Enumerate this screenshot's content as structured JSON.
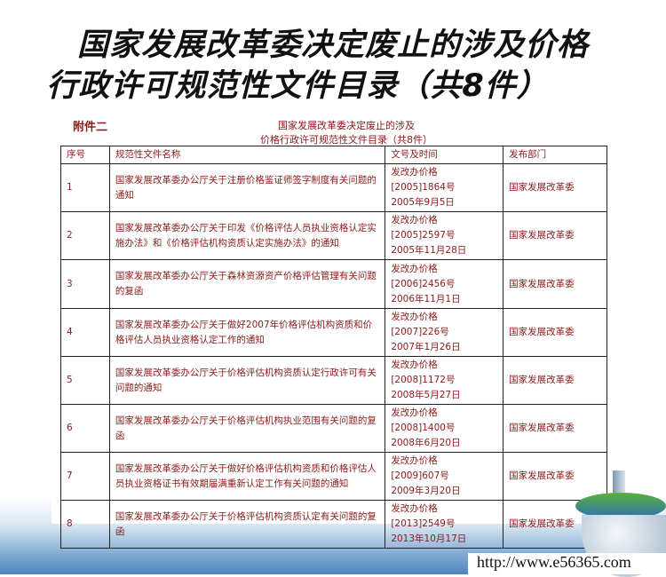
{
  "slide": {
    "title_line1": "国家发展改革委决定废止的涉及价格",
    "title_line2": "行政许可规范性文件目录（共8件）"
  },
  "document": {
    "annex_label": "附件二",
    "title_line1": "国家发展改革委决定废止的涉及",
    "title_line2": "价格行政许可规范性文件目录（共8件）",
    "table": {
      "headers": [
        "序号",
        "规范性文件名称",
        "文号及时间",
        "发布部门"
      ],
      "rows": [
        {
          "no": "1",
          "name": "国家发展改革委办公厅关于注册价格鉴证师签字制度有关问题的通知",
          "doc": "发改办价格",
          "num": "[2005]1864号",
          "date": "2005年9月5日",
          "dept": "国家发展改革委"
        },
        {
          "no": "2",
          "name": "国家发展改革委办公厅关于印发《价格评估人员执业资格认定实施办法》和《价格评估机构资质认定实施办法》的通知",
          "doc": "发改办价格",
          "num": "[2005]2597号",
          "date": "2005年11月28日",
          "dept": "国家发展改革委"
        },
        {
          "no": "3",
          "name": "国家发展改革委办公厅关于森林资源资产价格评估管理有关问题的复函",
          "doc": "发改办价格",
          "num": "[2006]2456号",
          "date": "2006年11月1日",
          "dept": "国家发展改革委"
        },
        {
          "no": "4",
          "name": "国家发展改革委办公厅关于做好2007年价格评估机构资质和价格评估人员执业资格认定工作的通知",
          "doc": "发改办价格",
          "num": "[2007]226号",
          "date": "2007年1月26日",
          "dept": "国家发展改革委"
        },
        {
          "no": "5",
          "name": "国家发展改革委办公厅关于价格评估机构资质认定行政许可有关问题的通知",
          "doc": "发改办价格",
          "num": "[2008]1172号",
          "date": "2008年5月27日",
          "dept": "国家发展改革委"
        },
        {
          "no": "6",
          "name": "国家发展改革委办公厅关于价格评估机构执业范围有关问题的复函",
          "doc": "发改办价格",
          "num": "[2008]1400号",
          "date": "2008年6月20日",
          "dept": "国家发展改革委"
        },
        {
          "no": "7",
          "name": "国家发展改革委办公厅关于做好价格评估机构资质和价格评估人员执业资格证书有效期届满重新认定工作有关问题的通知",
          "doc": "发改办价格",
          "num": "[2009]607号",
          "date": "2009年3月20日",
          "dept": "国家发展改革委"
        },
        {
          "no": "8",
          "name": "国家发展改革委办公厅关于价格评估机构资质认定有关问题的复函",
          "doc": "发改办价格",
          "num": "[2013]2549号",
          "date": "2013年10月17日",
          "dept": "国家发展改革委"
        }
      ]
    }
  },
  "footer": {
    "url": "http://www.e56365.com"
  },
  "colors": {
    "document_text": "#8b1a1a",
    "sky": "#4f84bb"
  }
}
